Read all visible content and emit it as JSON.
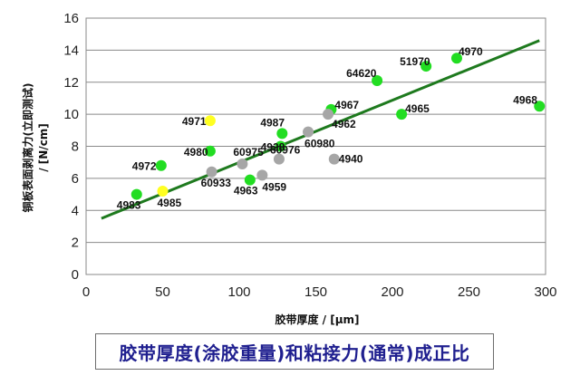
{
  "chart_data": {
    "type": "scatter",
    "xlabel": "胶带厚度 / [µm]",
    "ylabel_line1": "铜板表面剥离力(立即测试)",
    "ylabel_line2": "/ [N/cm]",
    "xlim": [
      0,
      300
    ],
    "ylim": [
      0,
      16
    ],
    "xticks": [
      0,
      50,
      100,
      150,
      200,
      250,
      300
    ],
    "yticks": [
      0,
      2,
      4,
      6,
      8,
      10,
      12,
      14,
      16
    ],
    "grid": "horizontal",
    "colors": {
      "green": "#22dd22",
      "yellow": "#ffff22",
      "gray": "#a6a6a6",
      "trend": "#1e7a1e"
    },
    "trendline": {
      "x": [
        10,
        296
      ],
      "y": [
        3.5,
        14.6
      ]
    },
    "points": [
      {
        "label": "4983",
        "x": 33,
        "y": 5.0,
        "color": "green"
      },
      {
        "label": "4985",
        "x": 50,
        "y": 5.2,
        "color": "yellow"
      },
      {
        "label": "4972",
        "x": 49,
        "y": 6.8,
        "color": "green"
      },
      {
        "label": "4971",
        "x": 81,
        "y": 9.6,
        "color": "yellow"
      },
      {
        "label": "4980",
        "x": 81,
        "y": 7.7,
        "color": "green"
      },
      {
        "label": "60933",
        "x": 82,
        "y": 6.4,
        "color": "gray"
      },
      {
        "label": "60975",
        "x": 102,
        "y": 6.9,
        "color": "gray"
      },
      {
        "label": "4963",
        "x": 107,
        "y": 5.9,
        "color": "green"
      },
      {
        "label": "4959",
        "x": 115,
        "y": 6.2,
        "color": "gray"
      },
      {
        "label": "60976",
        "x": 126,
        "y": 7.2,
        "color": "gray"
      },
      {
        "label": "4987",
        "x": 128,
        "y": 8.8,
        "color": "green"
      },
      {
        "label": "4928",
        "x": 127,
        "y": 8.0,
        "color": "green"
      },
      {
        "label": "60980",
        "x": 145,
        "y": 8.9,
        "color": "gray"
      },
      {
        "label": "4967",
        "x": 160,
        "y": 10.3,
        "color": "green"
      },
      {
        "label": "4962",
        "x": 158,
        "y": 10.0,
        "color": "gray"
      },
      {
        "label": "4940",
        "x": 162,
        "y": 7.2,
        "color": "gray"
      },
      {
        "label": "64620",
        "x": 190,
        "y": 12.1,
        "color": "green"
      },
      {
        "label": "4965",
        "x": 206,
        "y": 10.0,
        "color": "green"
      },
      {
        "label": "51970",
        "x": 222,
        "y": 13.0,
        "color": "green"
      },
      {
        "label": "4970",
        "x": 242,
        "y": 13.5,
        "color": "green"
      },
      {
        "label": "4968",
        "x": 296,
        "y": 10.5,
        "color": "green"
      }
    ]
  },
  "caption": "胶带厚度(涂胶重量)和粘接力(通常)成正比"
}
